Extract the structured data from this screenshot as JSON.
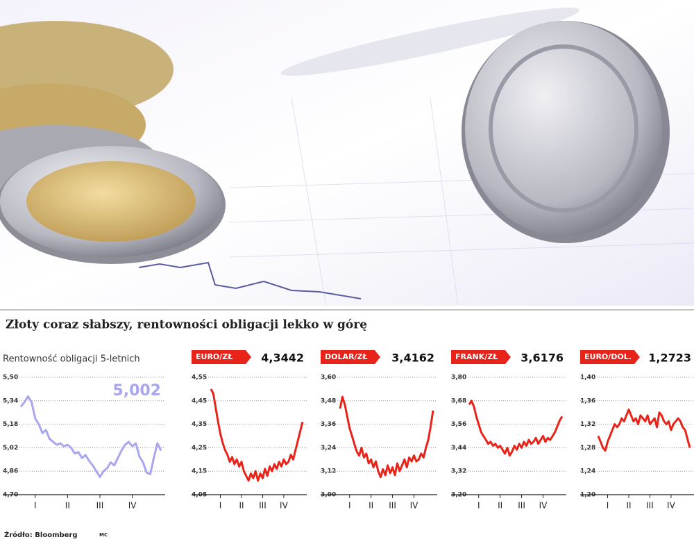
{
  "title": "Złoty coraz słabszy, rentowności obligacji lekko w górę",
  "source": "Źródło: Bloomberg",
  "credit": "MC",
  "chart_data": [
    {
      "type": "line",
      "title": "Rentowność obligacji 5-letnich",
      "headline": "5,002",
      "color": "#a9a6f0",
      "categories": [
        null,
        null,
        null,
        null,
        "I",
        null,
        null,
        null,
        null,
        null,
        null,
        null,
        null,
        "II",
        null,
        null,
        null,
        null,
        null,
        null,
        null,
        null,
        "III",
        null,
        null,
        null,
        null,
        null,
        null,
        null,
        null,
        "IV",
        null,
        null,
        null,
        null,
        null,
        null,
        null,
        null
      ],
      "values": [
        5.3,
        5.33,
        5.37,
        5.33,
        5.22,
        5.18,
        5.12,
        5.14,
        5.08,
        5.06,
        5.04,
        5.05,
        5.03,
        5.04,
        5.02,
        4.98,
        4.99,
        4.95,
        4.97,
        4.93,
        4.9,
        4.86,
        4.82,
        4.86,
        4.88,
        4.92,
        4.9,
        4.95,
        5.0,
        5.04,
        5.06,
        5.03,
        5.05,
        4.96,
        4.92,
        4.85,
        4.84,
        4.95,
        5.05,
        5.0
      ],
      "ylim": [
        4.7,
        5.5
      ],
      "yticks": [
        {
          "value": 4.7,
          "label": "4,70"
        },
        {
          "value": 4.86,
          "label": "4,86"
        },
        {
          "value": 5.02,
          "label": "5,02"
        },
        {
          "value": 5.18,
          "label": "5,18"
        },
        {
          "value": 5.34,
          "label": "5,34"
        },
        {
          "value": 5.5,
          "label": "5,50"
        }
      ],
      "grid": true
    },
    {
      "type": "line",
      "title": "EURO/ZŁ",
      "headline": "4,3442",
      "color": "#e8231a",
      "categories": [
        null,
        null,
        null,
        null,
        "I",
        null,
        null,
        null,
        null,
        null,
        null,
        null,
        null,
        "II",
        null,
        null,
        null,
        null,
        null,
        null,
        null,
        null,
        "III",
        null,
        null,
        null,
        null,
        null,
        null,
        null,
        null,
        "IV",
        null,
        null,
        null,
        null,
        null,
        null,
        null,
        null
      ],
      "values": [
        4.5,
        4.48,
        4.42,
        4.36,
        4.31,
        4.27,
        4.24,
        4.22,
        4.19,
        4.21,
        4.18,
        4.2,
        4.17,
        4.19,
        4.15,
        4.13,
        4.11,
        4.14,
        4.12,
        4.15,
        4.11,
        4.14,
        4.12,
        4.16,
        4.13,
        4.17,
        4.15,
        4.18,
        4.16,
        4.19,
        4.17,
        4.2,
        4.18,
        4.19,
        4.22,
        4.2,
        4.24,
        4.28,
        4.32,
        4.36
      ],
      "ylim": [
        4.05,
        4.55
      ],
      "yticks": [
        {
          "value": 4.05,
          "label": "4,05"
        },
        {
          "value": 4.15,
          "label": "4,15"
        },
        {
          "value": 4.25,
          "label": "4,25"
        },
        {
          "value": 4.35,
          "label": "4,35"
        },
        {
          "value": 4.45,
          "label": "4,45"
        },
        {
          "value": 4.55,
          "label": "4,55"
        }
      ],
      "grid": true
    },
    {
      "type": "line",
      "title": "DOLAR/ZŁ",
      "headline": "3,4162",
      "color": "#e8231a",
      "categories": [
        null,
        null,
        null,
        null,
        "I",
        null,
        null,
        null,
        null,
        null,
        null,
        null,
        null,
        "II",
        null,
        null,
        null,
        null,
        null,
        null,
        null,
        null,
        "III",
        null,
        null,
        null,
        null,
        null,
        null,
        null,
        null,
        "IV",
        null,
        null,
        null,
        null,
        null,
        null,
        null,
        null
      ],
      "values": [
        3.44,
        3.5,
        3.46,
        3.4,
        3.34,
        3.3,
        3.26,
        3.22,
        3.2,
        3.24,
        3.19,
        3.21,
        3.16,
        3.18,
        3.14,
        3.17,
        3.12,
        3.09,
        3.13,
        3.1,
        3.15,
        3.11,
        3.14,
        3.1,
        3.16,
        3.12,
        3.15,
        3.18,
        3.14,
        3.19,
        3.17,
        3.2,
        3.17,
        3.18,
        3.21,
        3.19,
        3.24,
        3.28,
        3.35,
        3.43
      ],
      "ylim": [
        3.0,
        3.6
      ],
      "yticks": [
        {
          "value": 3.0,
          "label": "3,00"
        },
        {
          "value": 3.12,
          "label": "3,12"
        },
        {
          "value": 3.24,
          "label": "3,24"
        },
        {
          "value": 3.36,
          "label": "3,36"
        },
        {
          "value": 3.48,
          "label": "3,48"
        },
        {
          "value": 3.6,
          "label": "3,60"
        }
      ],
      "grid": true
    },
    {
      "type": "line",
      "title": "FRANK/ZŁ",
      "headline": "3,6176",
      "color": "#e8231a",
      "categories": [
        null,
        null,
        null,
        null,
        "I",
        null,
        null,
        null,
        null,
        null,
        null,
        null,
        null,
        "II",
        null,
        null,
        null,
        null,
        null,
        null,
        null,
        null,
        "III",
        null,
        null,
        null,
        null,
        null,
        null,
        null,
        null,
        "IV",
        null,
        null,
        null,
        null,
        null,
        null,
        null,
        null
      ],
      "values": [
        3.66,
        3.68,
        3.65,
        3.6,
        3.56,
        3.52,
        3.5,
        3.48,
        3.46,
        3.47,
        3.45,
        3.46,
        3.44,
        3.45,
        3.43,
        3.41,
        3.44,
        3.4,
        3.42,
        3.45,
        3.43,
        3.46,
        3.44,
        3.47,
        3.45,
        3.48,
        3.46,
        3.47,
        3.49,
        3.46,
        3.48,
        3.5,
        3.47,
        3.49,
        3.48,
        3.5,
        3.52,
        3.55,
        3.58,
        3.6
      ],
      "ylim": [
        3.2,
        3.8
      ],
      "yticks": [
        {
          "value": 3.2,
          "label": "3,20"
        },
        {
          "value": 3.32,
          "label": "3,32"
        },
        {
          "value": 3.44,
          "label": "3,44"
        },
        {
          "value": 3.56,
          "label": "3,56"
        },
        {
          "value": 3.68,
          "label": "3,68"
        },
        {
          "value": 3.8,
          "label": "3,80"
        }
      ],
      "grid": true
    },
    {
      "type": "line",
      "title": "EURO/DOL.",
      "headline": "1,2723",
      "color": "#e8231a",
      "categories": [
        null,
        null,
        null,
        null,
        "I",
        null,
        null,
        null,
        null,
        null,
        null,
        null,
        null,
        "II",
        null,
        null,
        null,
        null,
        null,
        null,
        null,
        null,
        "III",
        null,
        null,
        null,
        null,
        null,
        null,
        null,
        null,
        "IV",
        null,
        null,
        null,
        null,
        null,
        null,
        null,
        null
      ],
      "values": [
        1.3,
        1.29,
        1.28,
        1.275,
        1.29,
        1.3,
        1.31,
        1.32,
        1.315,
        1.32,
        1.33,
        1.325,
        1.335,
        1.345,
        1.335,
        1.325,
        1.33,
        1.32,
        1.335,
        1.33,
        1.325,
        1.335,
        1.32,
        1.325,
        1.33,
        1.315,
        1.34,
        1.335,
        1.325,
        1.32,
        1.325,
        1.31,
        1.32,
        1.325,
        1.33,
        1.325,
        1.315,
        1.31,
        1.295,
        1.28
      ],
      "ylim": [
        1.2,
        1.4
      ],
      "yticks": [
        {
          "value": 1.2,
          "label": "1,20"
        },
        {
          "value": 1.24,
          "label": "1,24"
        },
        {
          "value": 1.28,
          "label": "1,28"
        },
        {
          "value": 1.32,
          "label": "1,32"
        },
        {
          "value": 1.36,
          "label": "1,36"
        },
        {
          "value": 1.4,
          "label": "1,40"
        }
      ],
      "grid": true
    }
  ]
}
